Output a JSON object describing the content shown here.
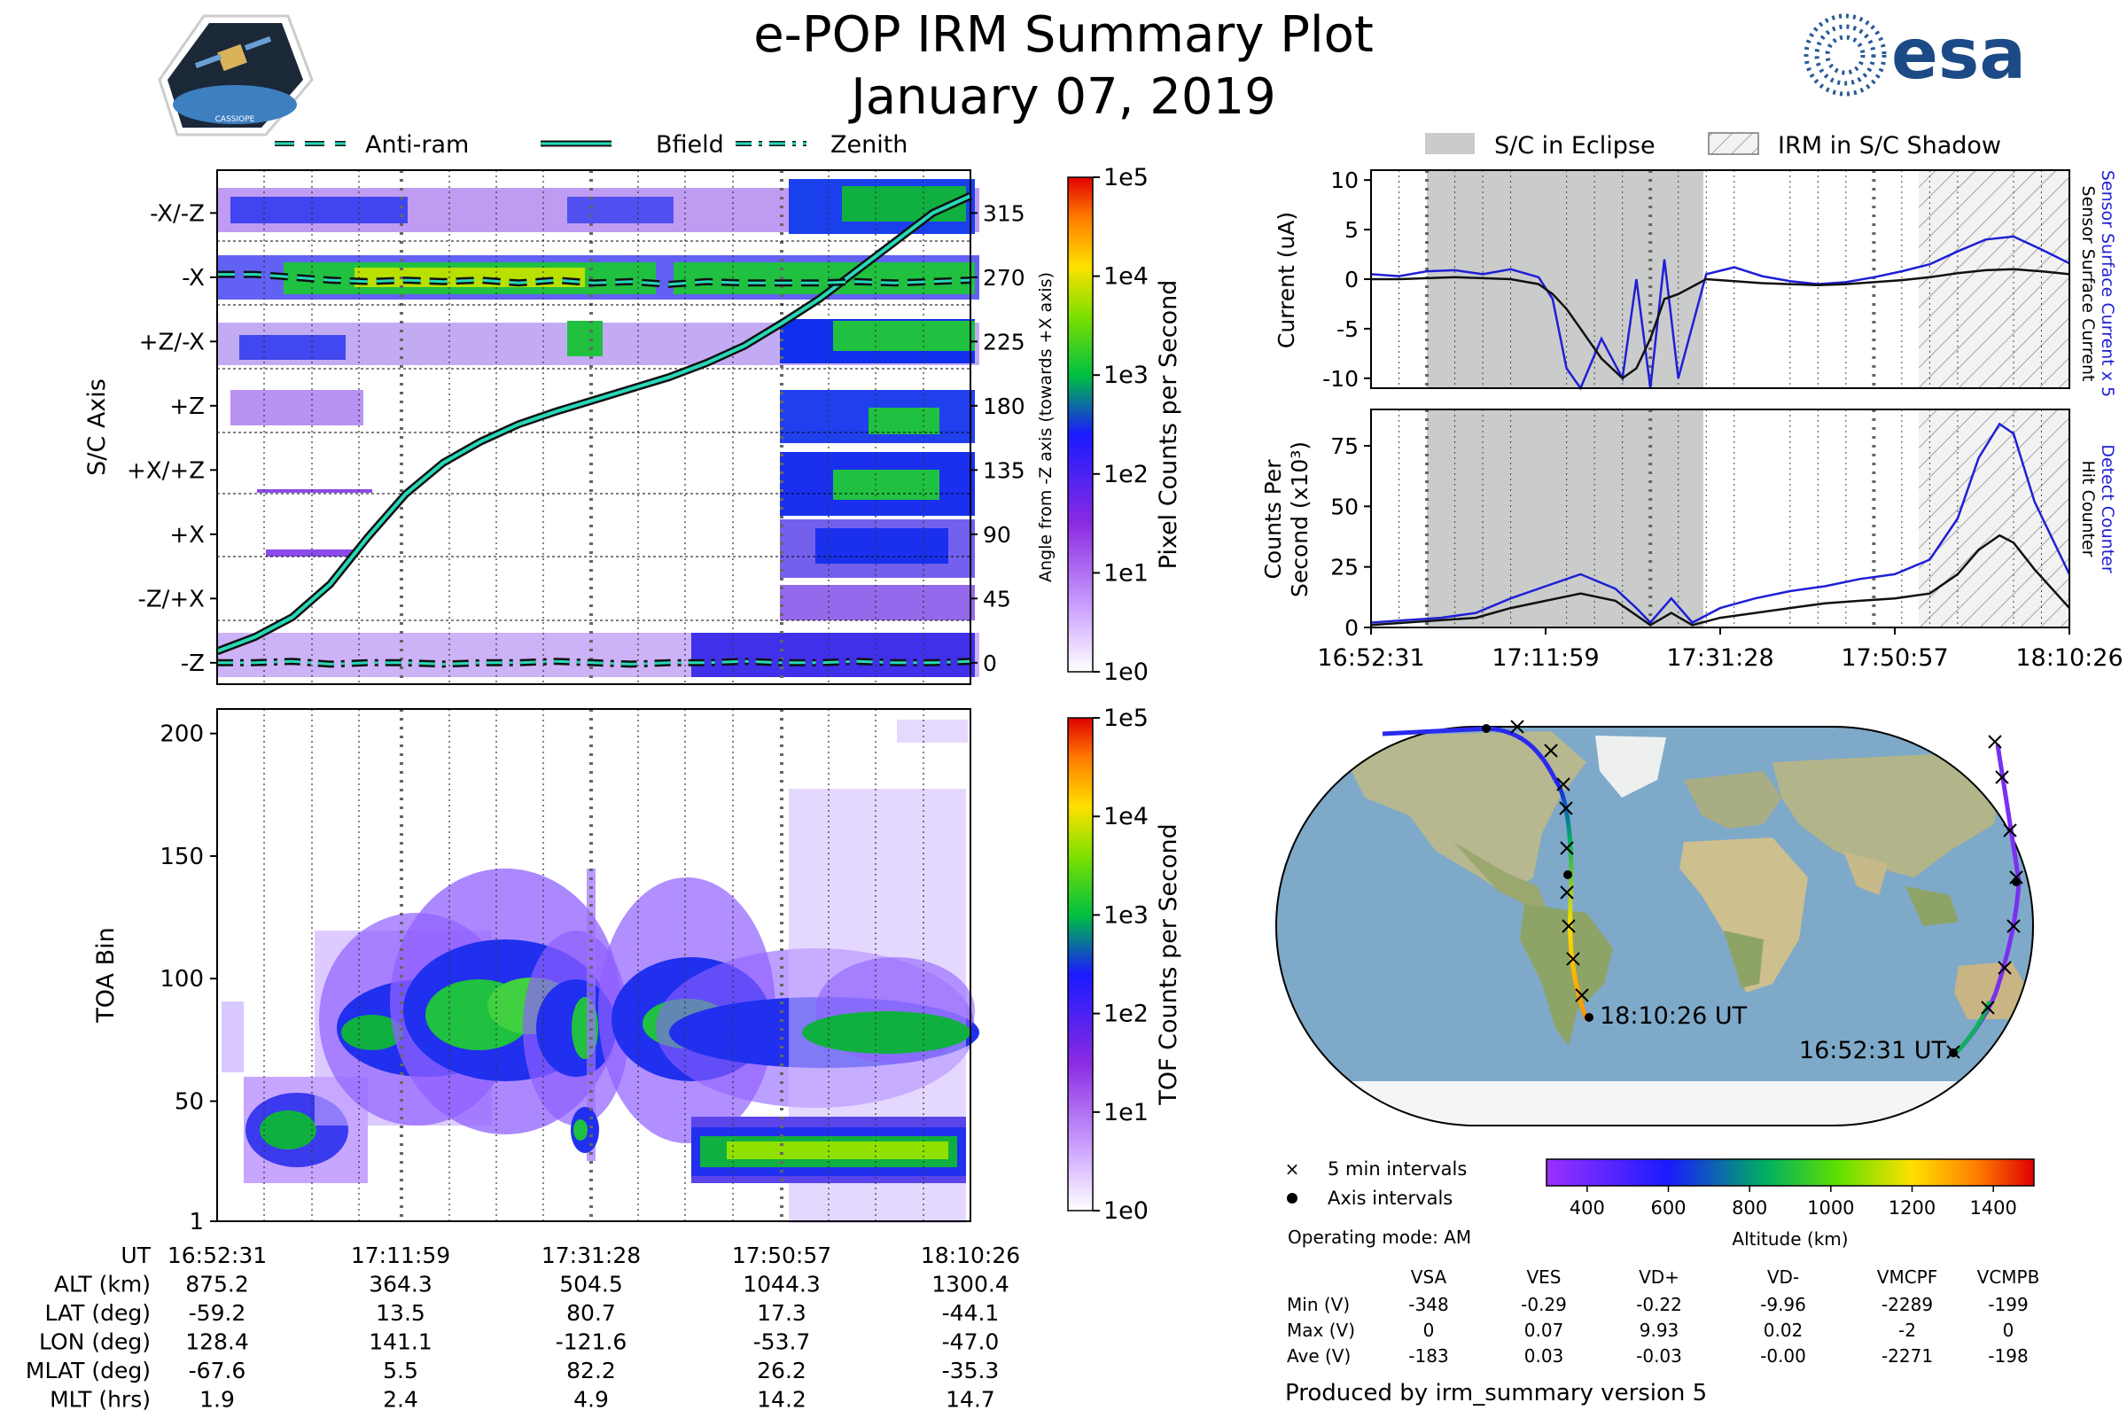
{
  "header": {
    "title": "e-POP IRM Summary Plot",
    "date": "January 07, 2019",
    "mission_logo_text": "CASSIOPE",
    "esa_logo_text": "esa"
  },
  "colors": {
    "bfield_line": "#26d9b8",
    "sensor_current": "#1f1fd6",
    "eclipse_fill": "#c9cccb",
    "ocean": "#7fa9c8",
    "land": "#c8c39a"
  },
  "icons": [
    "cassiope-mission-logo-icon",
    "esa-logo-icon"
  ],
  "legend_top": [
    "Anti-ram",
    "Bfield",
    "Zenith"
  ],
  "legend_right": [
    "S/C in Eclipse",
    "IRM in S/C Shadow"
  ],
  "chart_data": [
    {
      "type": "heatmap",
      "name": "sc-axis-spectrogram",
      "ylabel": "S/C Axis",
      "y_ticklabels": [
        "-X/-Z",
        "-X",
        "+Z/-X",
        "+Z",
        "+X/+Z",
        "+X",
        "-Z/+X",
        "-Z"
      ],
      "right_ylabel": "Angle from -Z axis (towards +X axis)",
      "right_ticks": [
        315,
        270,
        225,
        180,
        135,
        90,
        45,
        0
      ],
      "right_ylim": [
        -15,
        345
      ],
      "colorbar_label": "Pixel Counts per Second",
      "colorbar_ticks": [
        "1e5",
        "1e4",
        "1e3",
        "1e2",
        "1e1",
        "1e0"
      ],
      "x_fraction": [
        0.0,
        0.05,
        0.1,
        0.15,
        0.2,
        0.25,
        0.3,
        0.35,
        0.4,
        0.45,
        0.5,
        0.55,
        0.6,
        0.65,
        0.7,
        0.75,
        0.8,
        0.85,
        0.9,
        0.95,
        1.0
      ],
      "series": [
        {
          "name": "Bfield",
          "values": [
            8,
            18,
            32,
            55,
            88,
            118,
            140,
            155,
            167,
            176,
            184,
            192,
            200,
            210,
            222,
            238,
            255,
            275,
            295,
            315,
            327
          ]
        },
        {
          "name": "Anti-ram",
          "values": [
            272,
            272,
            270,
            268,
            267,
            268,
            267,
            268,
            266,
            268,
            266,
            267,
            265,
            267,
            266,
            266,
            266,
            267,
            266,
            267,
            268
          ]
        },
        {
          "name": "Zenith",
          "values": [
            0,
            0,
            1,
            -1,
            0,
            0,
            -1,
            0,
            0,
            1,
            0,
            -1,
            0,
            0,
            1,
            0,
            0,
            1,
            0,
            0,
            1
          ]
        }
      ]
    },
    {
      "type": "heatmap",
      "name": "toa-spectrogram",
      "ylabel": "TOA Bin",
      "y_ticks": [
        1,
        50,
        100,
        150,
        200
      ],
      "ylim": [
        1,
        210
      ],
      "colorbar_label": "TOF Counts per Second",
      "colorbar_ticks": [
        "1e5",
        "1e4",
        "1e3",
        "1e2",
        "1e1",
        "1e0"
      ]
    },
    {
      "type": "line",
      "name": "current",
      "ylabel": "Current (uA)",
      "ylim": [
        -11,
        11
      ],
      "y_ticks": [
        10,
        5,
        0,
        -5,
        -10
      ],
      "right_labels": [
        "Sensor Surface Current x 5",
        "Sensor Surface Current"
      ],
      "x_fraction": [
        0.0,
        0.04,
        0.08,
        0.12,
        0.16,
        0.2,
        0.24,
        0.26,
        0.28,
        0.3,
        0.33,
        0.36,
        0.38,
        0.4,
        0.42,
        0.44,
        0.48,
        0.52,
        0.56,
        0.6,
        0.64,
        0.68,
        0.72,
        0.76,
        0.8,
        0.84,
        0.88,
        0.92,
        0.96,
        1.0
      ],
      "series": [
        {
          "name": "Sensor Surface Current x 5",
          "values": [
            0.5,
            0.3,
            0.8,
            0.9,
            0.5,
            1.0,
            0.2,
            -2,
            -9,
            -11,
            -6,
            -10,
            0,
            -11,
            2,
            -10,
            0.5,
            1.2,
            0.3,
            -0.2,
            -0.5,
            -0.3,
            0.2,
            0.8,
            1.5,
            2.8,
            4.0,
            4.3,
            3.0,
            1.6
          ]
        },
        {
          "name": "Sensor Surface Current",
          "values": [
            0.0,
            0.0,
            0.1,
            0.2,
            0.1,
            0.0,
            -0.5,
            -1.5,
            -3,
            -5,
            -8,
            -10,
            -9,
            -6,
            -2,
            -1.5,
            0.0,
            -0.2,
            -0.4,
            -0.5,
            -0.6,
            -0.5,
            -0.3,
            -0.1,
            0.2,
            0.6,
            0.9,
            1.0,
            0.8,
            0.5
          ]
        }
      ]
    },
    {
      "type": "line",
      "name": "counts",
      "ylabel": "Counts Per Second (x10³)",
      "ylim": [
        0,
        90
      ],
      "y_ticks": [
        75,
        50,
        25,
        0
      ],
      "x_ticklabels": [
        "16:52:31",
        "17:11:59",
        "17:31:28",
        "17:50:57",
        "18:10:26"
      ],
      "right_labels": [
        "Detect Counter",
        "Hit Counter"
      ],
      "x_fraction": [
        0.0,
        0.05,
        0.1,
        0.15,
        0.2,
        0.25,
        0.3,
        0.35,
        0.38,
        0.4,
        0.43,
        0.46,
        0.5,
        0.55,
        0.6,
        0.65,
        0.7,
        0.75,
        0.8,
        0.84,
        0.87,
        0.9,
        0.92,
        0.95,
        1.0
      ],
      "series": [
        {
          "name": "Detect Counter",
          "values": [
            2,
            3,
            4,
            6,
            12,
            17,
            22,
            16,
            8,
            2,
            12,
            2,
            8,
            12,
            15,
            17,
            20,
            22,
            28,
            45,
            70,
            84,
            80,
            52,
            22
          ]
        },
        {
          "name": "Hit Counter",
          "values": [
            1,
            2,
            3,
            4,
            8,
            11,
            14,
            11,
            5,
            1,
            6,
            1,
            4,
            6,
            8,
            10,
            11,
            12,
            14,
            22,
            32,
            38,
            35,
            24,
            8
          ]
        }
      ]
    },
    {
      "type": "map",
      "name": "orbit-map",
      "start_label": "16:52:31 UT",
      "end_label": "18:10:26 UT",
      "legend": [
        "5 min intervals",
        "Axis intervals"
      ],
      "colorbar_label": "Altitude (km)",
      "colorbar_ticks": [
        400,
        600,
        800,
        1000,
        1200,
        1400
      ],
      "colorbar_range": [
        300,
        1500
      ]
    }
  ],
  "ephemeris": {
    "row_labels": [
      "UT",
      "ALT (km)",
      "LAT (deg)",
      "LON (deg)",
      "MLAT (deg)",
      "MLT (hrs)"
    ],
    "columns": [
      [
        "16:52:31",
        "875.2",
        "-59.2",
        "128.4",
        "-67.6",
        "1.9"
      ],
      [
        "17:11:59",
        "364.3",
        "13.5",
        "141.1",
        "5.5",
        "2.4"
      ],
      [
        "17:31:28",
        "504.5",
        "80.7",
        "-121.6",
        "82.2",
        "4.9"
      ],
      [
        "17:50:57",
        "1044.3",
        "17.3",
        "-53.7",
        "26.2",
        "14.2"
      ],
      [
        "18:10:26",
        "1300.4",
        "-44.1",
        "-47.0",
        "-35.3",
        "14.7"
      ]
    ]
  },
  "voltages": {
    "mode": "Operating mode: AM",
    "headers": [
      "VSA",
      "VES",
      "VD+",
      "VD-",
      "VMCPF",
      "VCMPB"
    ],
    "rows": [
      {
        "label": "Min (V)",
        "values": [
          "-348",
          "-0.29",
          "-0.22",
          "-9.96",
          "-2289",
          "-199"
        ]
      },
      {
        "label": "Max (V)",
        "values": [
          "0",
          "0.07",
          "9.93",
          "0.02",
          "-2",
          "0"
        ]
      },
      {
        "label": "Ave (V)",
        "values": [
          "-183",
          "0.03",
          "-0.03",
          "-0.00",
          "-2271",
          "-198"
        ]
      }
    ]
  },
  "footer": "Produced by irm_summary version 5"
}
